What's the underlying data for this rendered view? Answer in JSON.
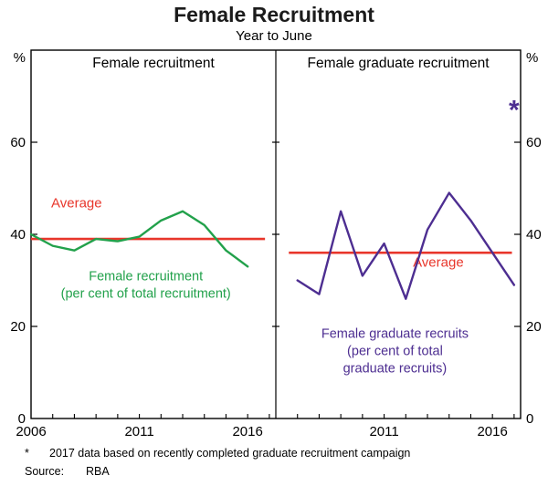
{
  "title": "Female Recruitment",
  "subtitle": "Year to June",
  "unit_left": "%",
  "unit_right": "%",
  "colors": {
    "green": "#22A14B",
    "purple": "#4D2E91",
    "red": "#E8362B",
    "axis": "#000000"
  },
  "axis": {
    "ylim": [
      0,
      80
    ],
    "yticks": [
      0,
      20,
      40,
      60
    ],
    "x_start": 2006,
    "x_end": 2017.3
  },
  "chart_data": [
    {
      "type": "line",
      "title": "Female recruitment",
      "x": [
        2006,
        2007,
        2008,
        2009,
        2010,
        2011,
        2012,
        2013,
        2014,
        2015,
        2016
      ],
      "series": [
        {
          "name": "Female recruitment (per cent of total recruitment)",
          "color_key": "green",
          "values": [
            40,
            37.5,
            36.5,
            39,
            38.5,
            39.5,
            43,
            45,
            42,
            36.5,
            33
          ]
        }
      ],
      "average": {
        "value": 39,
        "x1": 2006,
        "x2": 2016.8,
        "label": "Average",
        "label_x": 2008.1,
        "label_y": 45.8
      },
      "annotation": {
        "lines": [
          "Female recruitment",
          "(per cent of total recruitment)"
        ],
        "x": 2011.3,
        "y": 30,
        "color_key": "green"
      },
      "xtick_labels": [
        2006,
        2011,
        2016
      ]
    },
    {
      "type": "line",
      "title": "Female graduate recruitment",
      "x": [
        2007,
        2008,
        2009,
        2010,
        2011,
        2012,
        2013,
        2014,
        2015,
        2016,
        2017
      ],
      "series": [
        {
          "name": "Female graduate recruits (per cent of total graduate recruits)",
          "color_key": "purple",
          "values": [
            30,
            27,
            45,
            31,
            38,
            26,
            41,
            49,
            43,
            36,
            29
          ]
        }
      ],
      "average": {
        "value": 36,
        "x1": 2006.6,
        "x2": 2016.9,
        "label": "Average",
        "label_x": 2013.5,
        "label_y": 33
      },
      "annotation": {
        "lines": [
          "Female graduate recruits",
          "(per cent of total",
          "graduate recruits)"
        ],
        "x": 2011.5,
        "y": 17.5,
        "color_key": "purple"
      },
      "star": {
        "x": 2017,
        "y": 67,
        "symbol": "*"
      },
      "xtick_labels": [
        2011,
        2016
      ]
    }
  ],
  "footnotes": [
    {
      "marker": "*",
      "text": "2017 data based on recently completed graduate recruitment campaign"
    },
    {
      "marker": "Source:",
      "text": "RBA"
    }
  ]
}
